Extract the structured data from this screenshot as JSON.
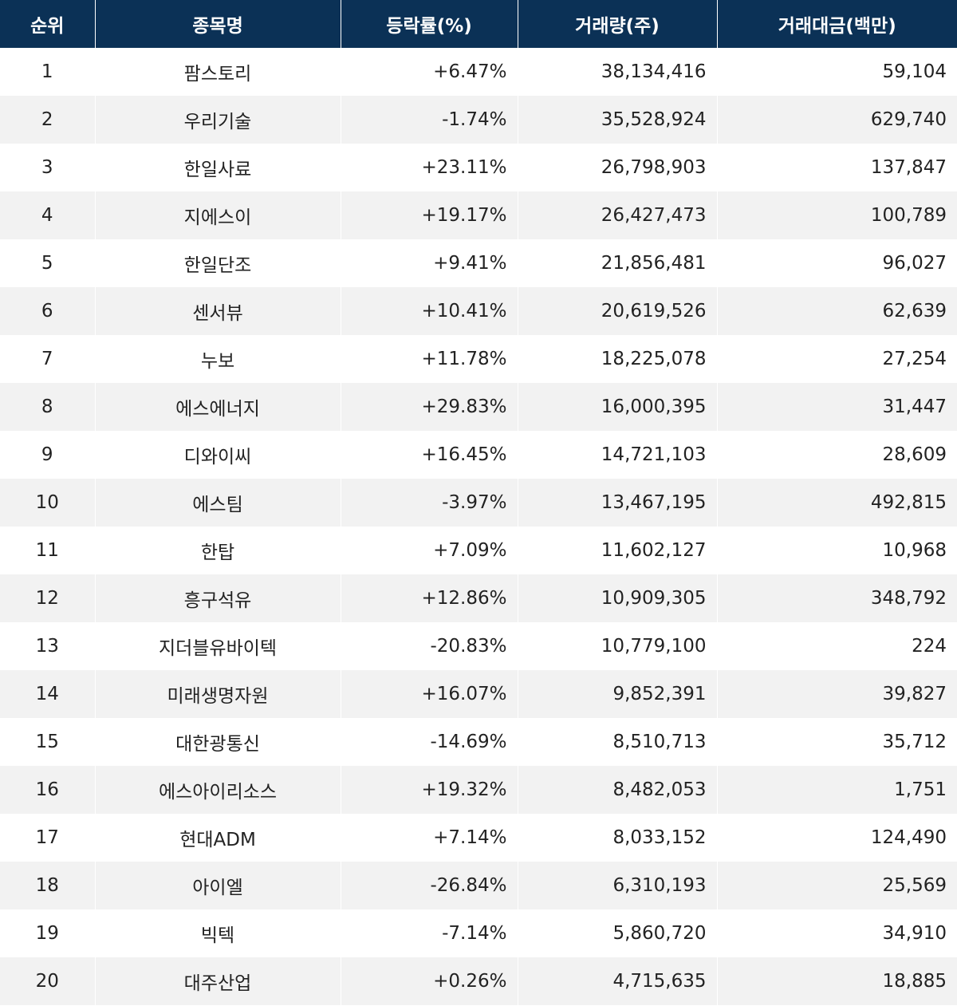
{
  "table": {
    "headers": {
      "rank": "순위",
      "name": "종목명",
      "change": "등락률(%)",
      "volume": "거래량(주)",
      "amount": "거래대금(백만)"
    },
    "rows": [
      {
        "rank": "1",
        "name": "팜스토리",
        "change": "+6.47%",
        "volume": "38,134,416",
        "amount": "59,104"
      },
      {
        "rank": "2",
        "name": "우리기술",
        "change": "-1.74%",
        "volume": "35,528,924",
        "amount": "629,740"
      },
      {
        "rank": "3",
        "name": "한일사료",
        "change": "+23.11%",
        "volume": "26,798,903",
        "amount": "137,847"
      },
      {
        "rank": "4",
        "name": "지에스이",
        "change": "+19.17%",
        "volume": "26,427,473",
        "amount": "100,789"
      },
      {
        "rank": "5",
        "name": "한일단조",
        "change": "+9.41%",
        "volume": "21,856,481",
        "amount": "96,027"
      },
      {
        "rank": "6",
        "name": "센서뷰",
        "change": "+10.41%",
        "volume": "20,619,526",
        "amount": "62,639"
      },
      {
        "rank": "7",
        "name": "누보",
        "change": "+11.78%",
        "volume": "18,225,078",
        "amount": "27,254"
      },
      {
        "rank": "8",
        "name": "에스에너지",
        "change": "+29.83%",
        "volume": "16,000,395",
        "amount": "31,447"
      },
      {
        "rank": "9",
        "name": "디와이씨",
        "change": "+16.45%",
        "volume": "14,721,103",
        "amount": "28,609"
      },
      {
        "rank": "10",
        "name": "에스팀",
        "change": "-3.97%",
        "volume": "13,467,195",
        "amount": "492,815"
      },
      {
        "rank": "11",
        "name": "한탑",
        "change": "+7.09%",
        "volume": "11,602,127",
        "amount": "10,968"
      },
      {
        "rank": "12",
        "name": "흥구석유",
        "change": "+12.86%",
        "volume": "10,909,305",
        "amount": "348,792"
      },
      {
        "rank": "13",
        "name": "지더블유바이텍",
        "change": "-20.83%",
        "volume": "10,779,100",
        "amount": "224"
      },
      {
        "rank": "14",
        "name": "미래생명자원",
        "change": "+16.07%",
        "volume": "9,852,391",
        "amount": "39,827"
      },
      {
        "rank": "15",
        "name": "대한광통신",
        "change": "-14.69%",
        "volume": "8,510,713",
        "amount": "35,712"
      },
      {
        "rank": "16",
        "name": "에스아이리소스",
        "change": "+19.32%",
        "volume": "8,482,053",
        "amount": "1,751"
      },
      {
        "rank": "17",
        "name": "현대ADM",
        "change": "+7.14%",
        "volume": "8,033,152",
        "amount": "124,490"
      },
      {
        "rank": "18",
        "name": "아이엘",
        "change": "-26.84%",
        "volume": "6,310,193",
        "amount": "25,569"
      },
      {
        "rank": "19",
        "name": "빅텍",
        "change": "-7.14%",
        "volume": "5,860,720",
        "amount": "34,910"
      },
      {
        "rank": "20",
        "name": "대주산업",
        "change": "+0.26%",
        "volume": "4,715,635",
        "amount": "18,885"
      }
    ]
  },
  "colors": {
    "header_bg": "#0b3156",
    "header_text": "#ffffff",
    "row_alt_bg": "#f2f2f2",
    "row_bg": "#ffffff",
    "text": "#222222"
  }
}
